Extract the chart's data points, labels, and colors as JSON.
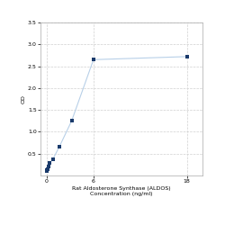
{
  "x": [
    0,
    0.05,
    0.1,
    0.2,
    0.4,
    0.8,
    1.6,
    3.2,
    6,
    18
  ],
  "y": [
    0.1,
    0.12,
    0.15,
    0.2,
    0.28,
    0.38,
    0.65,
    1.25,
    2.65,
    2.72
  ],
  "line_color": "#b8d0e8",
  "marker_color": "#1a3a6b",
  "marker_size": 3,
  "marker_style": "s",
  "xlabel_line1": "Rat Aldosterone Synthase (ALDOS)",
  "xlabel_line2": "Concentration (ng/ml)",
  "ylabel": "OD",
  "xlim": [
    -0.8,
    20
  ],
  "ylim": [
    0,
    3.5
  ],
  "yticks": [
    0.5,
    1.0,
    1.5,
    2.0,
    2.5,
    3.0,
    3.5
  ],
  "xticks": [
    0,
    6,
    18
  ],
  "grid_color": "#d0d0d0",
  "background_color": "#ffffff",
  "label_font_size": 4.5,
  "tick_font_size": 4.5
}
